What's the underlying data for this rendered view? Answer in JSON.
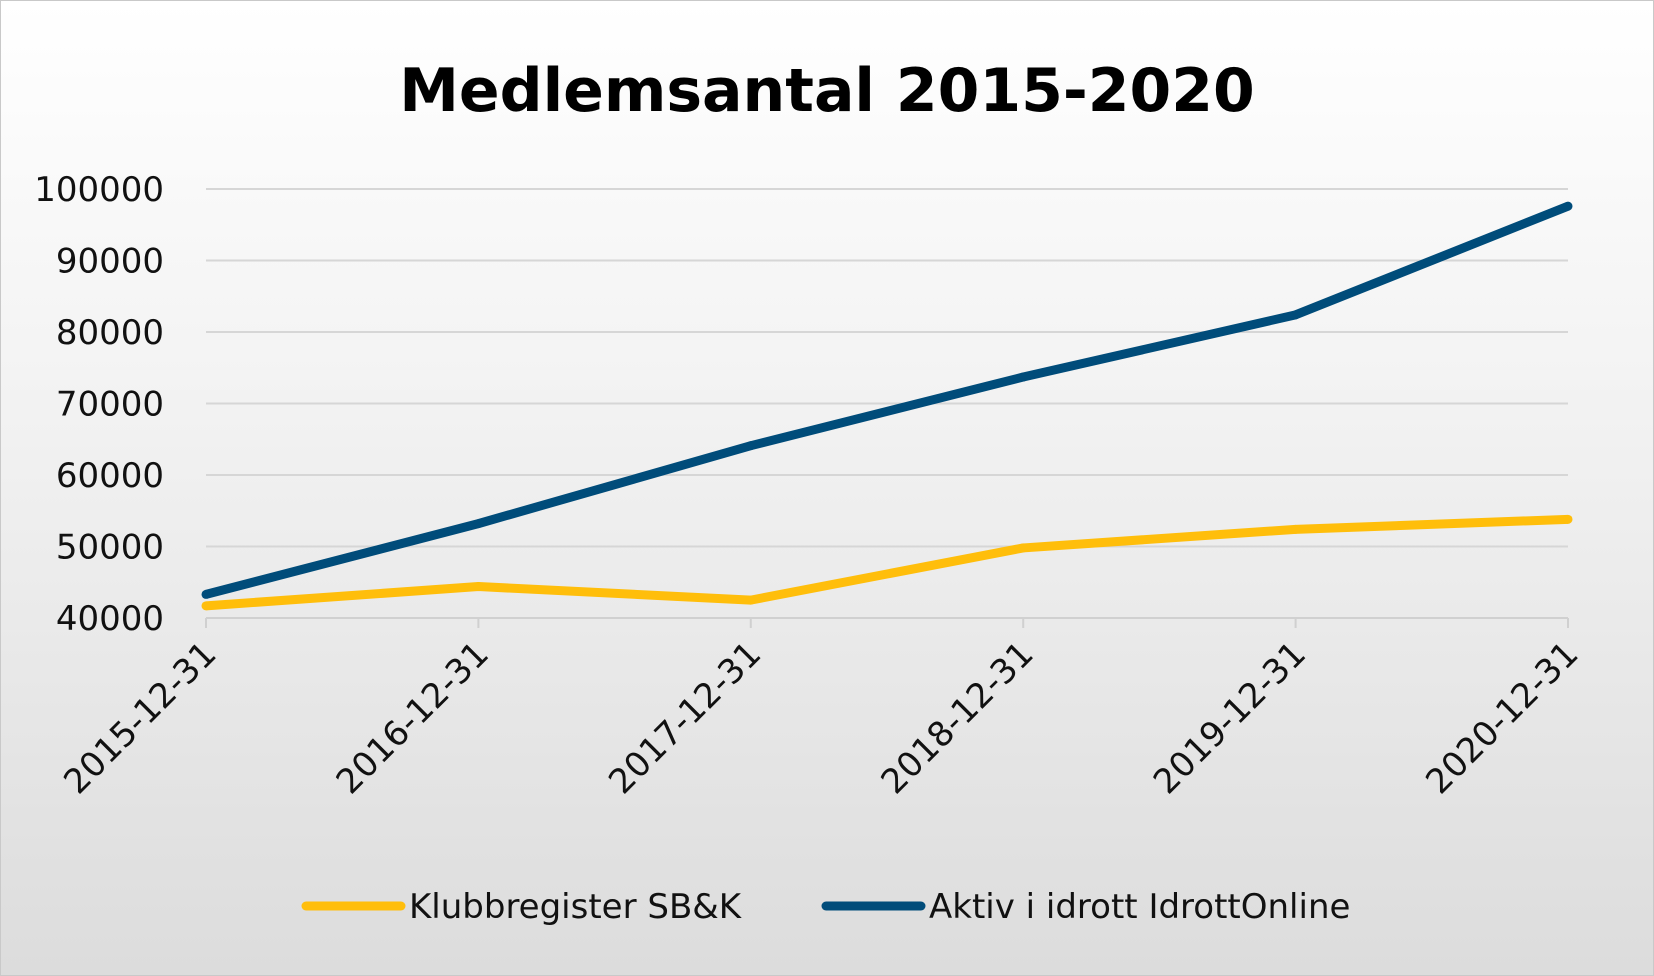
{
  "chart_data": {
    "type": "line",
    "title": "Medlemsantal 2015-2020",
    "xlabel": "",
    "ylabel": "",
    "categories": [
      "2015-12-31",
      "2016-12-31",
      "2017-12-31",
      "2018-12-31",
      "2019-12-31",
      "2020-12-31"
    ],
    "ylim": [
      40000,
      100000
    ],
    "yticks": [
      "100000",
      "90000",
      "80000",
      "70000",
      "60000",
      "50000",
      "40000"
    ],
    "grid": "horizontal",
    "legend_position": "bottom",
    "series": [
      {
        "name": "Klubbregister SB&K",
        "color": "#FFBE0B",
        "values": [
          41700,
          44400,
          42500,
          49800,
          52400,
          53800
        ]
      },
      {
        "name": "Aktiv i idrott IdrottOnline",
        "color": "#004C7A",
        "values": [
          43300,
          53200,
          64100,
          73700,
          82400,
          97600
        ]
      }
    ]
  }
}
